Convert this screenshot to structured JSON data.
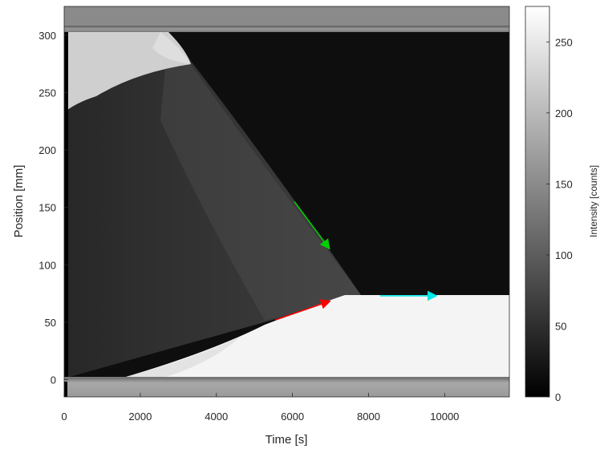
{
  "chart_data": {
    "type": "heatmap",
    "title": "",
    "xlabel": "Time [s]",
    "ylabel": "Position [mm]",
    "xlim": [
      0,
      11700
    ],
    "ylim": [
      -15,
      325
    ],
    "x_ticks": [
      0,
      2000,
      4000,
      6000,
      8000,
      10000
    ],
    "y_ticks": [
      0,
      50,
      100,
      150,
      200,
      250,
      300
    ],
    "colormap": "gray",
    "colorbar": {
      "label": "Intensity [counts]",
      "range": [
        0,
        275
      ],
      "ticks": [
        0,
        50,
        100,
        150,
        200,
        250
      ]
    },
    "annotations": [
      {
        "type": "arrow",
        "color": "#00d000",
        "from": [
          6050,
          155
        ],
        "to": [
          6950,
          115
        ]
      },
      {
        "type": "arrow",
        "color": "#ff0000",
        "from": [
          5550,
          52
        ],
        "to": [
          6950,
          68
        ]
      },
      {
        "type": "arrow",
        "color": "#00e8e8",
        "from": [
          8300,
          73
        ],
        "to": [
          9750,
          73
        ]
      }
    ]
  },
  "x_tick_labels": [
    "0",
    "2000",
    "4000",
    "6000",
    "8000",
    "10000"
  ],
  "y_tick_labels": [
    "0",
    "50",
    "100",
    "150",
    "200",
    "250",
    "300"
  ],
  "colorbar_tick_labels": [
    "0",
    "50",
    "100",
    "150",
    "200",
    "250"
  ]
}
